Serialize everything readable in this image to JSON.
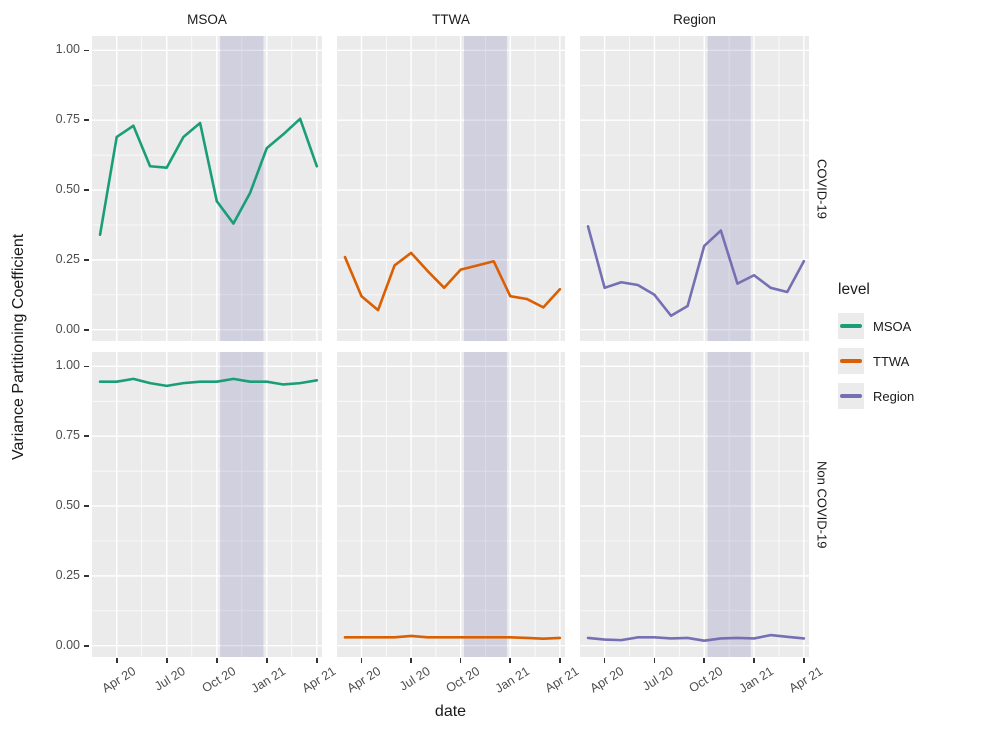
{
  "figure": {
    "x_axis_title": "date",
    "y_axis_title": "Variance Partitioning Coefficient"
  },
  "legend": {
    "title": "level",
    "entries": [
      {
        "label": "MSOA",
        "color": "#1b9e77"
      },
      {
        "label": "TTWA",
        "color": "#d95f02"
      },
      {
        "label": "Region",
        "color": "#7570b3"
      }
    ]
  },
  "colors": {
    "panel_background": "#ebebeb",
    "gridline": "#ffffff",
    "shaded_band": "#8d89bd",
    "axis_text": "#4d4d4d",
    "title_text": "#1a1a1a",
    "tick_mark": "#333333"
  },
  "chart_data": {
    "type": "line",
    "xlabel": "date",
    "ylabel": "Variance Partitioning Coefficient",
    "col_facets": [
      "MSOA",
      "TTWA",
      "Region"
    ],
    "row_facets": [
      "COVID-19",
      "Non COVID-19"
    ],
    "x": [
      "Mar 20",
      "Apr 20",
      "May 20",
      "Jun 20",
      "Jul 20",
      "Aug 20",
      "Sep 20",
      "Oct 20",
      "Nov 20",
      "Dec 20",
      "Jan 21",
      "Feb 21",
      "Mar 21",
      "Apr 21"
    ],
    "x_tick_labels": [
      "Apr 20",
      "Jul 20",
      "Oct 20",
      "Jan 21",
      "Apr 21"
    ],
    "x_tick_month_indices": [
      1,
      4,
      7,
      10,
      13
    ],
    "y_tick_labels": [
      "1.00",
      "0.75",
      "0.50",
      "0.25",
      "0.00"
    ],
    "y_tick_values": [
      1.0,
      0.75,
      0.5,
      0.25,
      0.0
    ],
    "ylim": [
      0,
      1
    ],
    "grid": true,
    "legend_position": "right",
    "shaded_band_month_range": [
      7.2,
      9.8
    ],
    "series": [
      {
        "level": "MSOA",
        "facet_row": "COVID-19",
        "values": [
          0.34,
          0.69,
          0.73,
          0.585,
          0.58,
          0.69,
          0.74,
          0.46,
          0.38,
          0.49,
          0.65,
          0.7,
          0.755,
          0.585
        ]
      },
      {
        "level": "TTWA",
        "facet_row": "COVID-19",
        "values": [
          0.26,
          0.12,
          0.07,
          0.23,
          0.275,
          0.21,
          0.15,
          0.215,
          0.23,
          0.245,
          0.12,
          0.11,
          0.08,
          0.145
        ]
      },
      {
        "level": "Region",
        "facet_row": "COVID-19",
        "values": [
          0.37,
          0.15,
          0.17,
          0.16,
          0.125,
          0.05,
          0.085,
          0.3,
          0.355,
          0.165,
          0.195,
          0.15,
          0.135,
          0.245
        ]
      },
      {
        "level": "MSOA",
        "facet_row": "Non COVID-19",
        "values": [
          0.945,
          0.945,
          0.955,
          0.94,
          0.93,
          0.94,
          0.945,
          0.945,
          0.955,
          0.945,
          0.945,
          0.935,
          0.94,
          0.95
        ]
      },
      {
        "level": "TTWA",
        "facet_row": "Non COVID-19",
        "values": [
          0.03,
          0.03,
          0.03,
          0.03,
          0.035,
          0.03,
          0.03,
          0.03,
          0.03,
          0.03,
          0.03,
          0.028,
          0.025,
          0.028
        ]
      },
      {
        "level": "Region",
        "facet_row": "Non COVID-19",
        "values": [
          0.028,
          0.022,
          0.02,
          0.03,
          0.03,
          0.026,
          0.028,
          0.018,
          0.026,
          0.028,
          0.026,
          0.038,
          0.032,
          0.026
        ]
      }
    ]
  }
}
